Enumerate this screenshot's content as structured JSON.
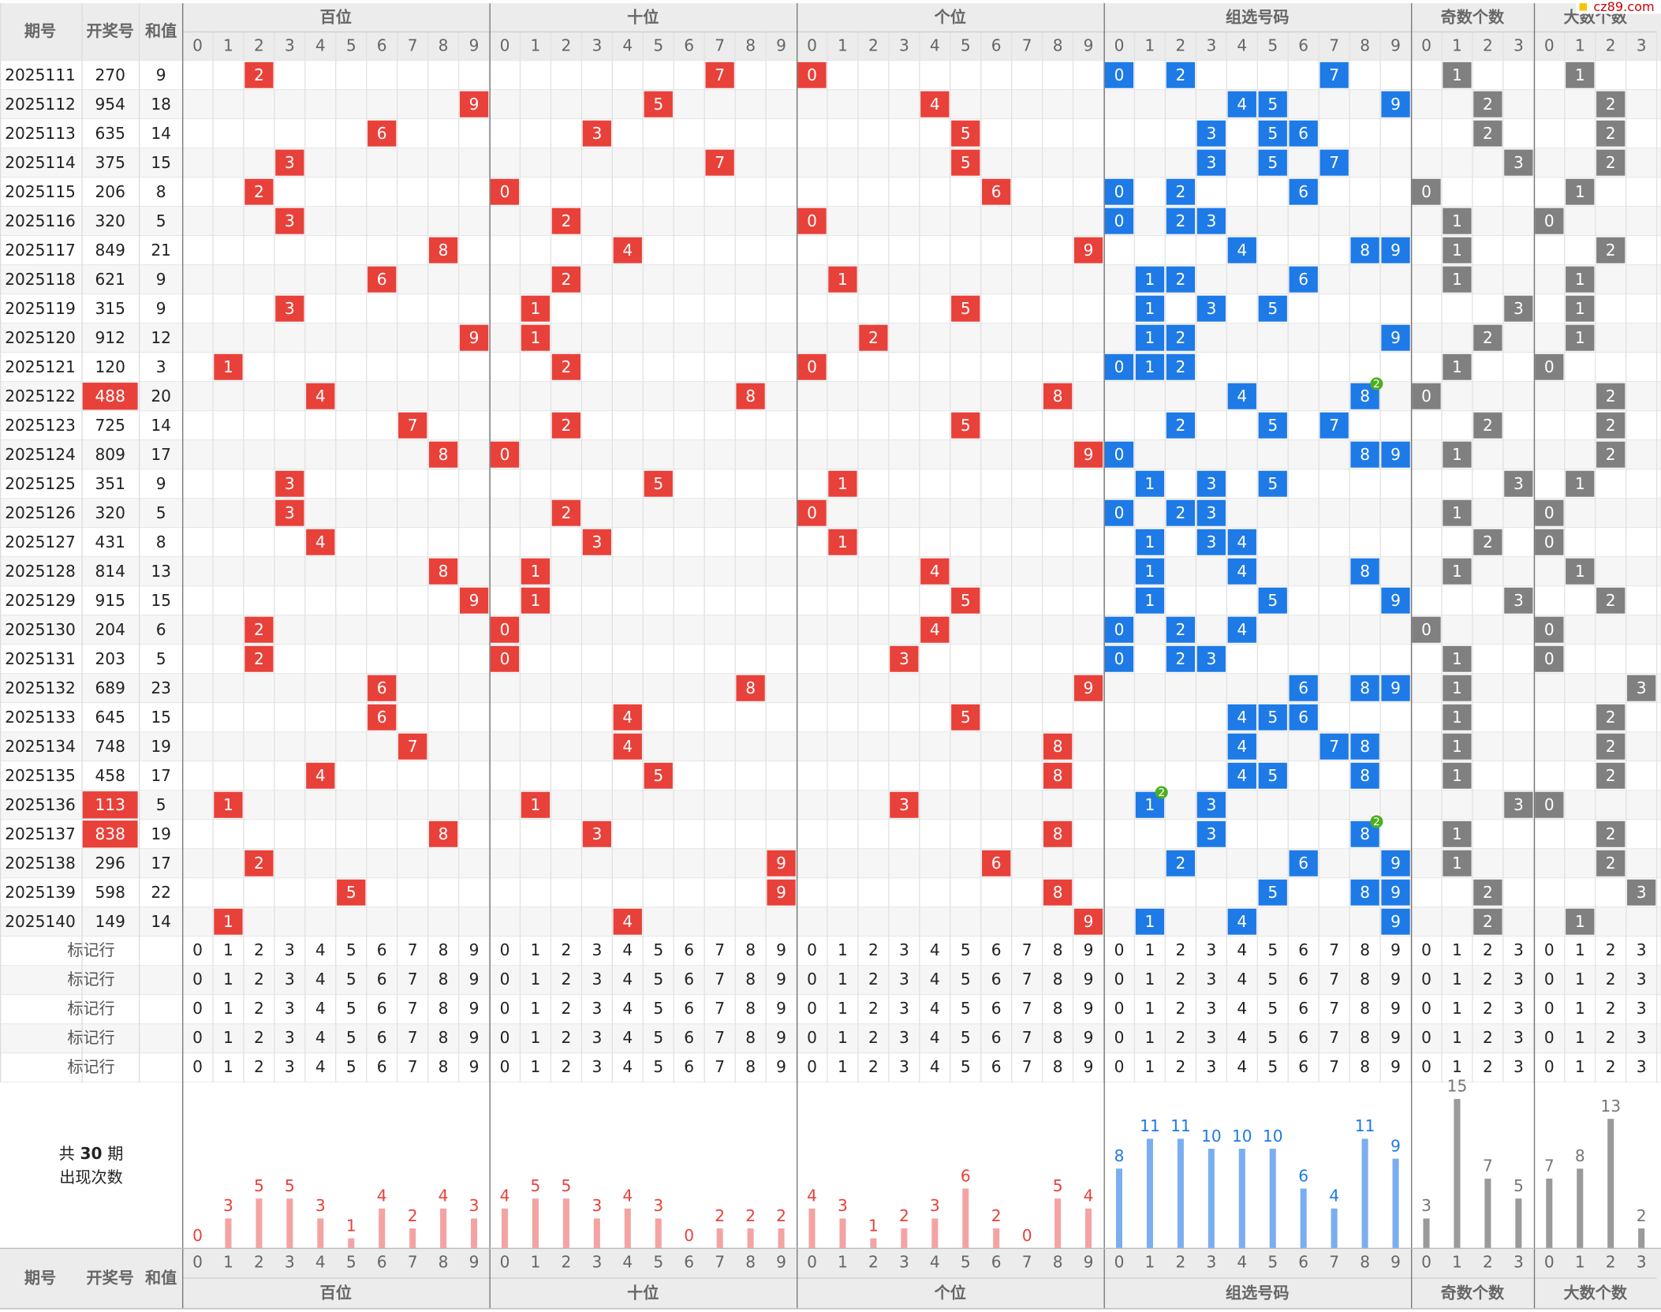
{
  "watermark": "cz89.com",
  "header": {
    "period": "期号",
    "number": "开奖号",
    "sum": "和值"
  },
  "groups": [
    {
      "name": "百位",
      "digits": [
        0,
        1,
        2,
        3,
        4,
        5,
        6,
        7,
        8,
        9
      ],
      "counts": [
        0,
        3,
        5,
        5,
        3,
        1,
        4,
        2,
        4,
        3
      ]
    },
    {
      "name": "十位",
      "digits": [
        0,
        1,
        2,
        3,
        4,
        5,
        6,
        7,
        8,
        9
      ],
      "counts": [
        4,
        5,
        5,
        3,
        4,
        3,
        0,
        2,
        2,
        2
      ]
    },
    {
      "name": "个位",
      "digits": [
        0,
        1,
        2,
        3,
        4,
        5,
        6,
        7,
        8,
        9
      ],
      "counts": [
        4,
        3,
        1,
        2,
        3,
        6,
        2,
        0,
        5,
        4
      ]
    },
    {
      "name": "组选号码",
      "digits": [
        0,
        1,
        2,
        3,
        4,
        5,
        6,
        7,
        8,
        9
      ],
      "counts": [
        8,
        11,
        11,
        10,
        10,
        10,
        6,
        4,
        11,
        9
      ]
    },
    {
      "name": "奇数个数",
      "digits": [
        0,
        1,
        2,
        3
      ],
      "counts": [
        3,
        15,
        7,
        5
      ]
    },
    {
      "name": "大数个数",
      "digits": [
        0,
        1,
        2,
        3
      ],
      "counts": [
        7,
        8,
        13,
        2
      ]
    }
  ],
  "rows": [
    {
      "period": "2025111",
      "number": "270",
      "sum": 9
    },
    {
      "period": "2025112",
      "number": "954",
      "sum": 18
    },
    {
      "period": "2025113",
      "number": "635",
      "sum": 14
    },
    {
      "period": "2025114",
      "number": "375",
      "sum": 15
    },
    {
      "period": "2025115",
      "number": "206",
      "sum": 8
    },
    {
      "period": "2025116",
      "number": "320",
      "sum": 5
    },
    {
      "period": "2025117",
      "number": "849",
      "sum": 21
    },
    {
      "period": "2025118",
      "number": "621",
      "sum": 9
    },
    {
      "period": "2025119",
      "number": "315",
      "sum": 9
    },
    {
      "period": "2025120",
      "number": "912",
      "sum": 12
    },
    {
      "period": "2025121",
      "number": "120",
      "sum": 3
    },
    {
      "period": "2025122",
      "number": "488",
      "sum": 20
    },
    {
      "period": "2025123",
      "number": "725",
      "sum": 14
    },
    {
      "period": "2025124",
      "number": "809",
      "sum": 17
    },
    {
      "period": "2025125",
      "number": "351",
      "sum": 9
    },
    {
      "period": "2025126",
      "number": "320",
      "sum": 5
    },
    {
      "period": "2025127",
      "number": "431",
      "sum": 8
    },
    {
      "period": "2025128",
      "number": "814",
      "sum": 13
    },
    {
      "period": "2025129",
      "number": "915",
      "sum": 15
    },
    {
      "period": "2025130",
      "number": "204",
      "sum": 6
    },
    {
      "period": "2025131",
      "number": "203",
      "sum": 5
    },
    {
      "period": "2025132",
      "number": "689",
      "sum": 23
    },
    {
      "period": "2025133",
      "number": "645",
      "sum": 15
    },
    {
      "period": "2025134",
      "number": "748",
      "sum": 19
    },
    {
      "period": "2025135",
      "number": "458",
      "sum": 17
    },
    {
      "period": "2025136",
      "number": "113",
      "sum": 5
    },
    {
      "period": "2025137",
      "number": "838",
      "sum": 19
    },
    {
      "period": "2025138",
      "number": "296",
      "sum": 17
    },
    {
      "period": "2025139",
      "number": "598",
      "sum": 22
    },
    {
      "period": "2025140",
      "number": "149",
      "sum": 14
    }
  ],
  "mark_rows": [
    "标记行",
    "标记行",
    "标记行",
    "标记行",
    "标记行"
  ],
  "stats": {
    "prefix": "共",
    "periods": 30,
    "suffix": "期",
    "label": "出现次数"
  },
  "repeat_badge": 2
}
